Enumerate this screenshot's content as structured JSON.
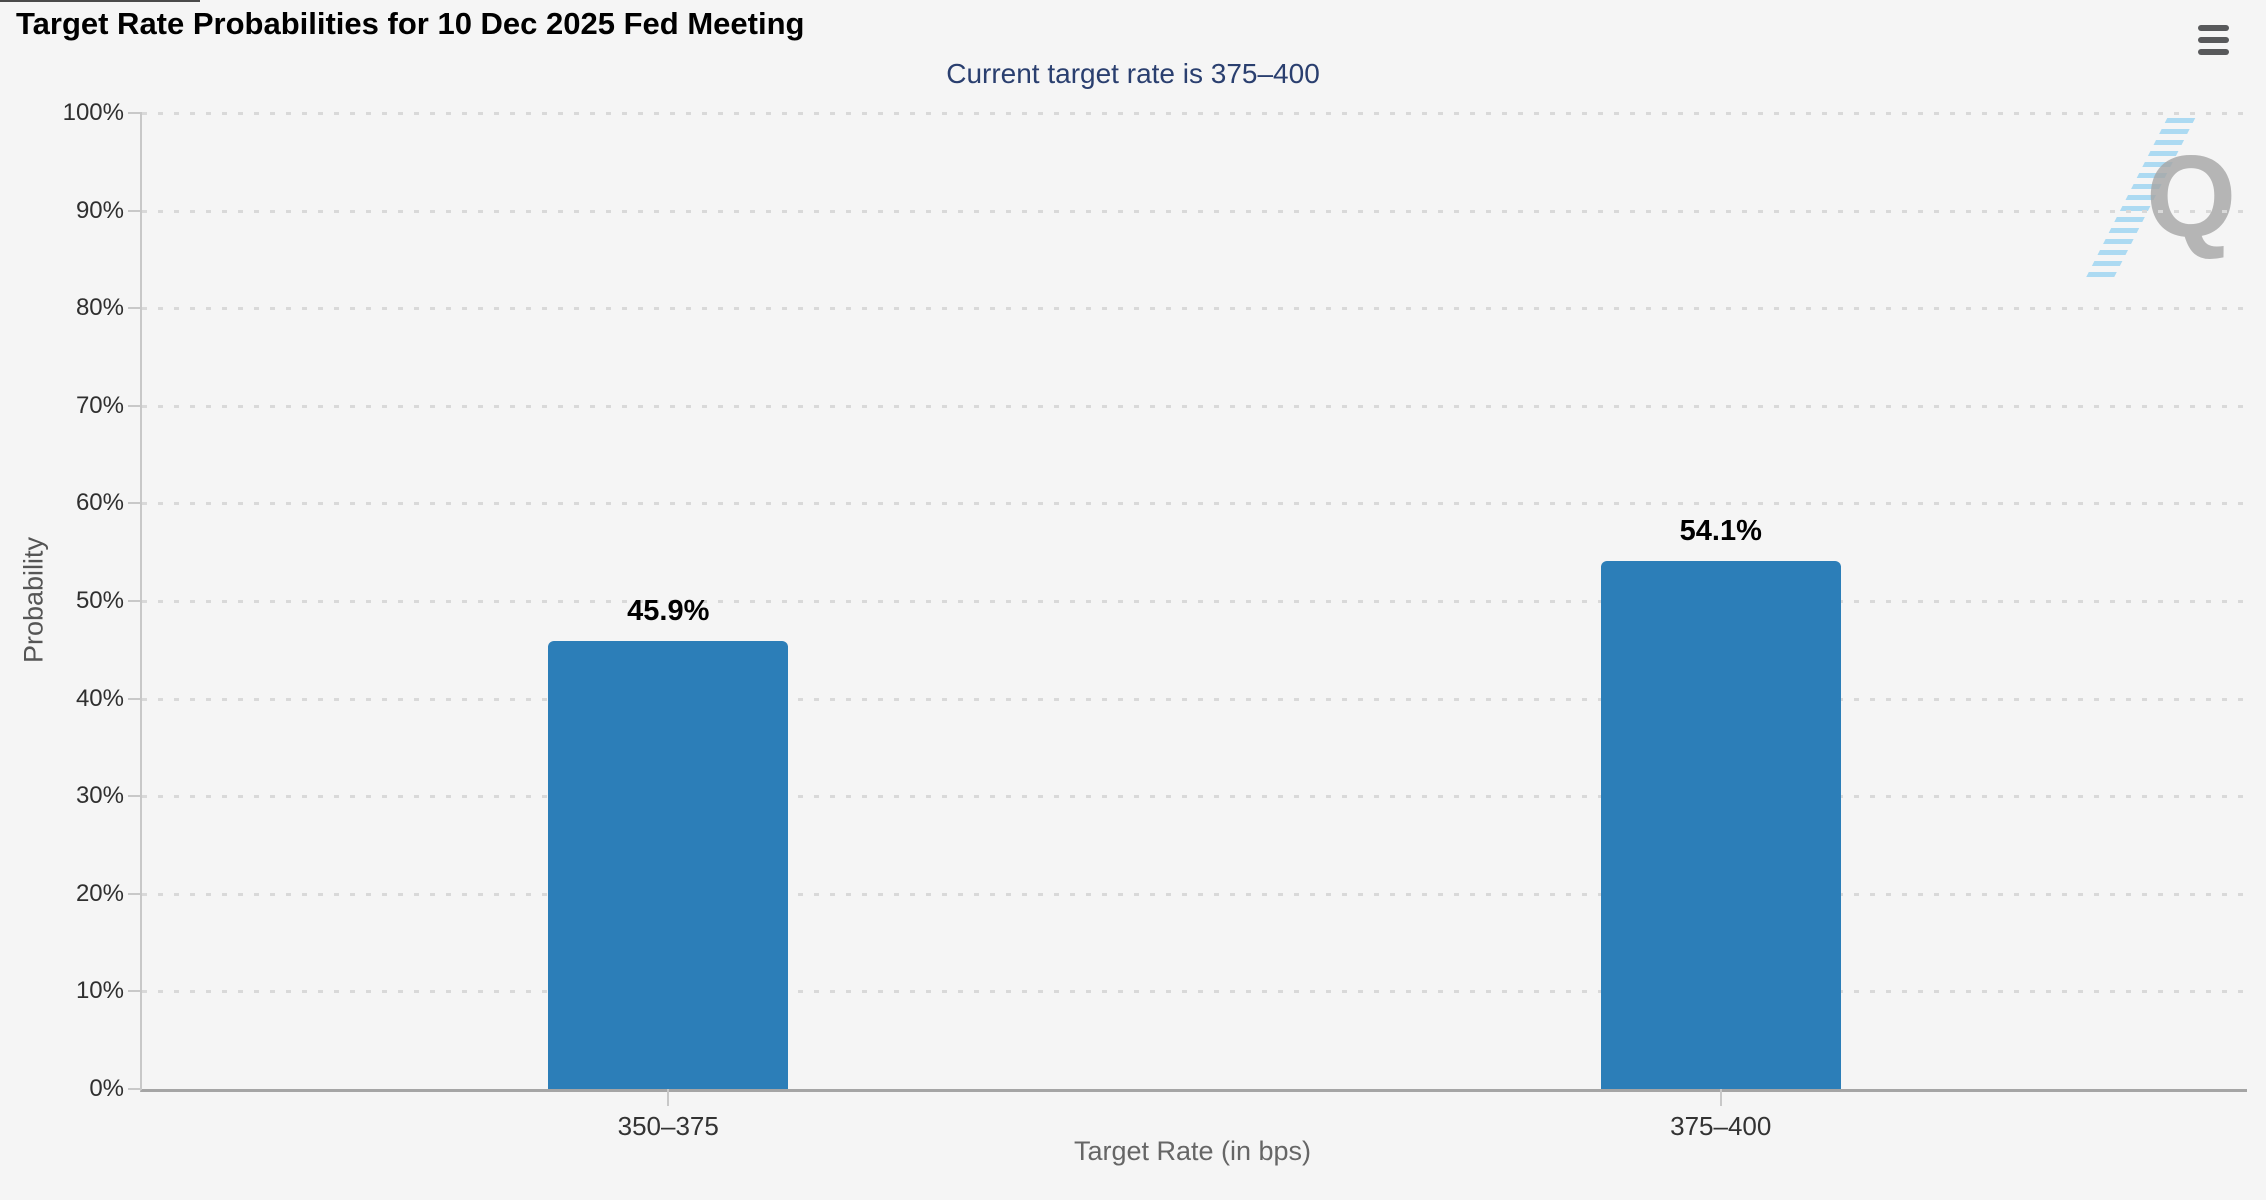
{
  "chart_data": {
    "type": "bar",
    "title": "Target Rate Probabilities for 10 Dec 2025 Fed Meeting",
    "subtitle": "Current target rate is 375–400",
    "categories": [
      "350–375",
      "375–400"
    ],
    "values": [
      45.9,
      54.1
    ],
    "data_labels": [
      "45.9%",
      "54.1%"
    ],
    "xlabel": "Target Rate (in bps)",
    "ylabel": "Probability",
    "ylim": [
      0,
      100
    ],
    "ytick_step": 10,
    "ytick_suffix": "%",
    "grid": "horizontal-dotted",
    "legend": "none",
    "bar_color": "#2c7eb8"
  },
  "menu": {
    "context_button": "hamburger-icon"
  },
  "watermark": {
    "letter": "Q"
  },
  "colors": {
    "background": "#f5f5f5",
    "bar": "#2c7eb8",
    "title": "#000000",
    "subtitle": "#2a3f6f",
    "axis_tick_label": "#2f2f2f",
    "axis_title": "#595959",
    "grid_dot": "#d9d9d9",
    "y_axis_line": "#c8c8c8",
    "x_axis_line": "#a5a5a5",
    "menu_icon": "#58595b",
    "watermark_q": "#a6a6a6",
    "watermark_stripes": "#8dcef0"
  }
}
